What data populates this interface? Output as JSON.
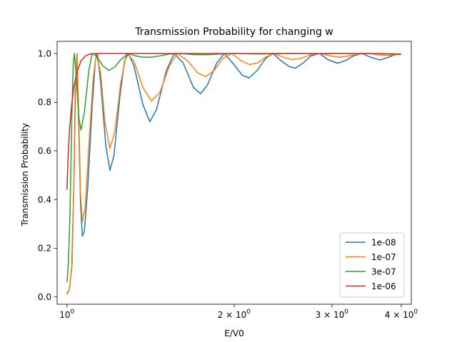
{
  "chart_data": {
    "type": "line",
    "title": "Transmission Probability for changing w",
    "xlabel": "E/V0",
    "ylabel": "Transmission Probability",
    "xscale": "log",
    "xlim": [
      0.96,
      4.17
    ],
    "ylim": [
      -0.03,
      1.05
    ],
    "x_ticks": [
      {
        "value": 1,
        "base": "10",
        "exp": "0"
      },
      {
        "value": 2,
        "base": "2 × 10",
        "exp": "0"
      },
      {
        "value": 3,
        "base": "3 × 10",
        "exp": "0"
      },
      {
        "value": 4,
        "base": "4 × 10",
        "exp": "0"
      }
    ],
    "y_ticks": [
      "0.0",
      "0.2",
      "0.4",
      "0.6",
      "0.8",
      "1.0"
    ],
    "legend_position": "lower-right",
    "series": [
      {
        "name": "1e-08",
        "color": "#1f77b4",
        "points": [
          [
            1.0,
            0.015
          ],
          [
            1.01,
            0.03
          ],
          [
            1.02,
            0.12
          ],
          [
            1.03,
            0.5
          ],
          [
            1.035,
            0.85
          ],
          [
            1.042,
            1.0
          ],
          [
            1.05,
            0.7
          ],
          [
            1.058,
            0.38
          ],
          [
            1.066,
            0.25
          ],
          [
            1.075,
            0.27
          ],
          [
            1.09,
            0.45
          ],
          [
            1.11,
            0.78
          ],
          [
            1.125,
            0.97
          ],
          [
            1.135,
            1.0
          ],
          [
            1.15,
            0.88
          ],
          [
            1.175,
            0.62
          ],
          [
            1.195,
            0.52
          ],
          [
            1.215,
            0.58
          ],
          [
            1.245,
            0.82
          ],
          [
            1.27,
            0.97
          ],
          [
            1.29,
            1.0
          ],
          [
            1.32,
            0.95
          ],
          [
            1.37,
            0.79
          ],
          [
            1.41,
            0.72
          ],
          [
            1.45,
            0.77
          ],
          [
            1.51,
            0.93
          ],
          [
            1.56,
            1.0
          ],
          [
            1.62,
            0.96
          ],
          [
            1.69,
            0.86
          ],
          [
            1.74,
            0.835
          ],
          [
            1.79,
            0.87
          ],
          [
            1.86,
            0.96
          ],
          [
            1.92,
            1.0
          ],
          [
            1.99,
            0.96
          ],
          [
            2.07,
            0.91
          ],
          [
            2.13,
            0.9
          ],
          [
            2.2,
            0.93
          ],
          [
            2.28,
            0.98
          ],
          [
            2.35,
            1.0
          ],
          [
            2.43,
            0.97
          ],
          [
            2.52,
            0.945
          ],
          [
            2.58,
            0.94
          ],
          [
            2.66,
            0.96
          ],
          [
            2.75,
            0.99
          ],
          [
            2.85,
            1.0
          ],
          [
            2.95,
            0.975
          ],
          [
            3.07,
            0.96
          ],
          [
            3.17,
            0.97
          ],
          [
            3.28,
            0.99
          ],
          [
            3.4,
            1.0
          ],
          [
            3.52,
            0.985
          ],
          [
            3.66,
            0.973
          ],
          [
            3.8,
            0.985
          ],
          [
            3.9,
            0.995
          ],
          [
            4.0,
            0.997
          ]
        ]
      },
      {
        "name": "1e-07",
        "color": "#ff7f0e",
        "points": [
          [
            1.0,
            0.01
          ],
          [
            1.01,
            0.03
          ],
          [
            1.022,
            0.14
          ],
          [
            1.032,
            0.6
          ],
          [
            1.038,
            0.92
          ],
          [
            1.043,
            1.0
          ],
          [
            1.05,
            0.75
          ],
          [
            1.058,
            0.42
          ],
          [
            1.066,
            0.31
          ],
          [
            1.078,
            0.36
          ],
          [
            1.095,
            0.62
          ],
          [
            1.115,
            0.9
          ],
          [
            1.13,
            1.0
          ],
          [
            1.15,
            0.92
          ],
          [
            1.17,
            0.72
          ],
          [
            1.195,
            0.61
          ],
          [
            1.22,
            0.68
          ],
          [
            1.25,
            0.88
          ],
          [
            1.28,
            1.0
          ],
          [
            1.32,
            0.97
          ],
          [
            1.37,
            0.86
          ],
          [
            1.42,
            0.805
          ],
          [
            1.47,
            0.84
          ],
          [
            1.53,
            0.95
          ],
          [
            1.58,
            1.0
          ],
          [
            1.65,
            0.97
          ],
          [
            1.72,
            0.92
          ],
          [
            1.78,
            0.905
          ],
          [
            1.84,
            0.93
          ],
          [
            1.91,
            0.98
          ],
          [
            1.98,
            1.0
          ],
          [
            2.06,
            0.97
          ],
          [
            2.13,
            0.955
          ],
          [
            2.2,
            0.96
          ],
          [
            2.28,
            0.985
          ],
          [
            2.36,
            1.0
          ],
          [
            2.45,
            0.985
          ],
          [
            2.54,
            0.975
          ],
          [
            2.64,
            0.98
          ],
          [
            2.75,
            0.995
          ],
          [
            2.86,
            1.0
          ],
          [
            2.98,
            0.99
          ],
          [
            3.1,
            0.985
          ],
          [
            3.22,
            0.99
          ],
          [
            3.35,
            0.998
          ],
          [
            3.5,
            1.0
          ],
          [
            3.65,
            0.994
          ],
          [
            3.8,
            0.992
          ],
          [
            3.9,
            0.995
          ],
          [
            4.0,
            0.997
          ]
        ]
      },
      {
        "name": "3e-07",
        "color": "#2ca02c",
        "points": [
          [
            1.0,
            0.06
          ],
          [
            1.006,
            0.14
          ],
          [
            1.013,
            0.35
          ],
          [
            1.02,
            0.72
          ],
          [
            1.026,
            0.95
          ],
          [
            1.031,
            1.0
          ],
          [
            1.04,
            0.9
          ],
          [
            1.05,
            0.74
          ],
          [
            1.06,
            0.685
          ],
          [
            1.075,
            0.76
          ],
          [
            1.095,
            0.93
          ],
          [
            1.11,
            1.0
          ],
          [
            1.13,
            0.99
          ],
          [
            1.16,
            0.95
          ],
          [
            1.19,
            0.93
          ],
          [
            1.22,
            0.945
          ],
          [
            1.25,
            0.975
          ],
          [
            1.29,
            1.0
          ],
          [
            1.33,
            0.99
          ],
          [
            1.37,
            0.985
          ],
          [
            1.42,
            0.985
          ],
          [
            1.47,
            0.99
          ],
          [
            1.53,
            0.998
          ],
          [
            1.6,
            1.0
          ],
          [
            1.7,
            0.995
          ],
          [
            1.8,
            0.995
          ],
          [
            1.9,
            0.998
          ],
          [
            2.0,
            1.0
          ],
          [
            2.2,
            0.998
          ],
          [
            2.4,
            0.999
          ],
          [
            2.6,
            1.0
          ],
          [
            2.8,
            0.999
          ],
          [
            3.0,
            1.0
          ],
          [
            3.2,
            0.999
          ],
          [
            3.5,
            1.0
          ],
          [
            3.8,
            0.999
          ],
          [
            4.0,
            0.997
          ]
        ]
      },
      {
        "name": "1e-06",
        "color": "#d62728",
        "points": [
          [
            1.0,
            0.44
          ],
          [
            1.005,
            0.58
          ],
          [
            1.01,
            0.68
          ],
          [
            1.02,
            0.79
          ],
          [
            1.03,
            0.87
          ],
          [
            1.045,
            0.93
          ],
          [
            1.06,
            0.97
          ],
          [
            1.08,
            0.99
          ],
          [
            1.1,
            0.998
          ],
          [
            1.13,
            1.0
          ],
          [
            1.2,
            1.0
          ],
          [
            1.4,
            1.0
          ],
          [
            1.7,
            1.0
          ],
          [
            2.0,
            1.0
          ],
          [
            2.5,
            1.0
          ],
          [
            3.0,
            1.0
          ],
          [
            3.5,
            1.0
          ],
          [
            4.0,
            0.997
          ]
        ]
      }
    ]
  }
}
